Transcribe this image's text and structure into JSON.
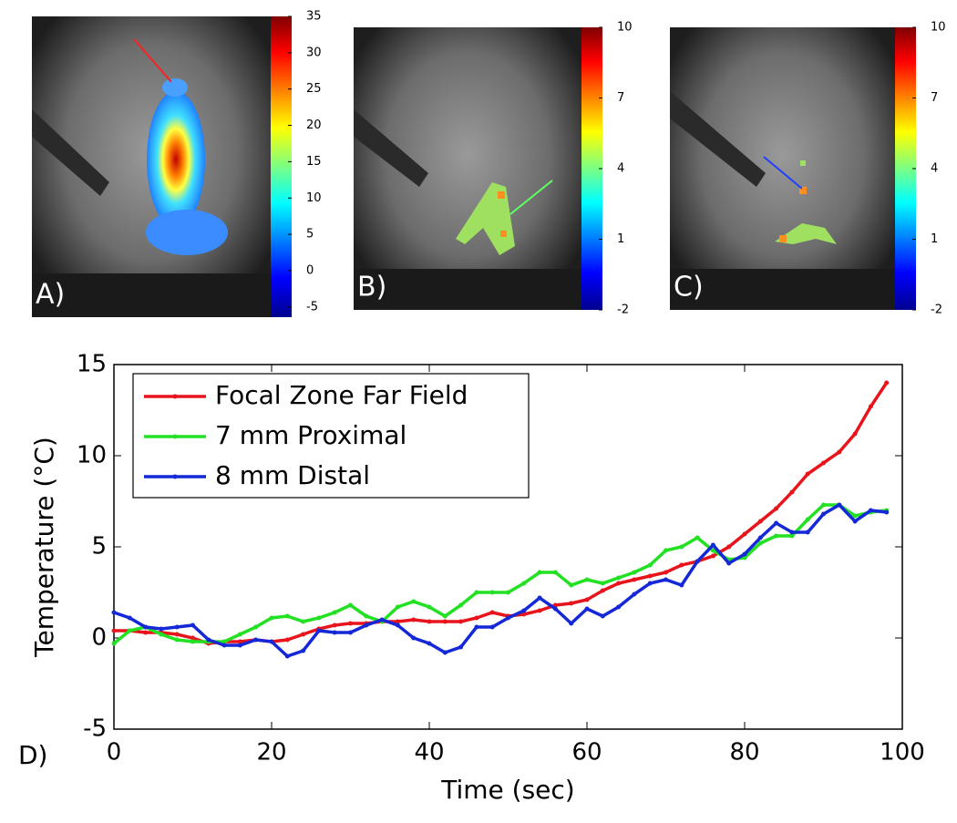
{
  "chart_data": [
    {
      "type": "colorbar",
      "label": "A)",
      "ylim": [
        -6.4,
        35
      ],
      "yticks": [
        -5,
        0,
        5,
        10,
        15,
        20,
        25,
        30,
        35
      ]
    },
    {
      "type": "colorbar",
      "label": "B)",
      "ylim": [
        -2,
        10
      ],
      "yticks": [
        -2,
        1,
        4,
        7,
        10
      ]
    },
    {
      "type": "colorbar",
      "label": "C)",
      "ylim": [
        -2,
        10
      ],
      "yticks": [
        -2,
        1,
        4,
        7,
        10
      ]
    },
    {
      "type": "line",
      "label": "D)",
      "xlabel": "Time (sec)",
      "ylabel": "Temperature (°C)",
      "xlim": [
        0,
        100
      ],
      "ylim": [
        -5,
        15
      ],
      "xticks": [
        0,
        20,
        40,
        60,
        80,
        100
      ],
      "yticks": [
        -5,
        0,
        5,
        10,
        15
      ],
      "x": [
        0,
        2,
        4,
        6,
        8,
        10,
        12,
        14,
        16,
        18,
        20,
        22,
        24,
        26,
        28,
        30,
        32,
        34,
        36,
        38,
        40,
        42,
        44,
        46,
        48,
        50,
        52,
        54,
        56,
        58,
        60,
        62,
        64,
        66,
        68,
        70,
        72,
        74,
        76,
        78,
        80,
        82,
        84,
        86,
        88,
        90,
        92,
        94,
        96,
        98
      ],
      "series": [
        {
          "name": "Focal Zone Far Field",
          "color": "#e8141c",
          "values": [
            0.4,
            0.4,
            0.3,
            0.3,
            0.2,
            0.0,
            -0.3,
            -0.2,
            -0.2,
            -0.1,
            -0.2,
            -0.1,
            0.2,
            0.5,
            0.7,
            0.8,
            0.8,
            0.9,
            0.9,
            1.0,
            0.9,
            0.9,
            0.9,
            1.1,
            1.4,
            1.2,
            1.3,
            1.5,
            1.8,
            1.9,
            2.1,
            2.6,
            3.0,
            3.2,
            3.4,
            3.6,
            4.0,
            4.2,
            4.5,
            5.0,
            5.7,
            6.4,
            7.1,
            8.0,
            9.0,
            9.6,
            10.2,
            11.2,
            12.7,
            14.0
          ]
        },
        {
          "name": "7 mm Proximal",
          "color": "#22e022",
          "values": [
            -0.3,
            0.4,
            0.6,
            0.2,
            -0.1,
            -0.2,
            -0.2,
            -0.2,
            0.2,
            0.6,
            1.1,
            1.2,
            0.9,
            1.1,
            1.4,
            1.8,
            1.2,
            0.9,
            1.7,
            2.0,
            1.7,
            1.2,
            1.8,
            2.5,
            2.5,
            2.5,
            3.0,
            3.6,
            3.6,
            2.9,
            3.2,
            3.0,
            3.3,
            3.6,
            4.0,
            4.8,
            5.0,
            5.5,
            4.8,
            4.3,
            4.4,
            5.2,
            5.6,
            5.6,
            6.5,
            7.3,
            7.3,
            6.7,
            6.9,
            7.0
          ]
        },
        {
          "name": "8 mm Distal",
          "color": "#1428d8",
          "values": [
            1.4,
            1.1,
            0.6,
            0.5,
            0.6,
            0.7,
            -0.1,
            -0.4,
            -0.4,
            -0.1,
            -0.2,
            -1.0,
            -0.7,
            0.4,
            0.3,
            0.3,
            0.7,
            1.0,
            0.7,
            0.0,
            -0.3,
            -0.8,
            -0.5,
            0.6,
            0.6,
            1.1,
            1.5,
            2.2,
            1.6,
            0.8,
            1.6,
            1.2,
            1.7,
            2.4,
            3.0,
            3.2,
            2.9,
            4.2,
            5.1,
            4.1,
            4.6,
            5.5,
            6.3,
            5.8,
            5.8,
            6.8,
            7.3,
            6.4,
            7.0,
            6.9
          ]
        }
      ]
    }
  ]
}
